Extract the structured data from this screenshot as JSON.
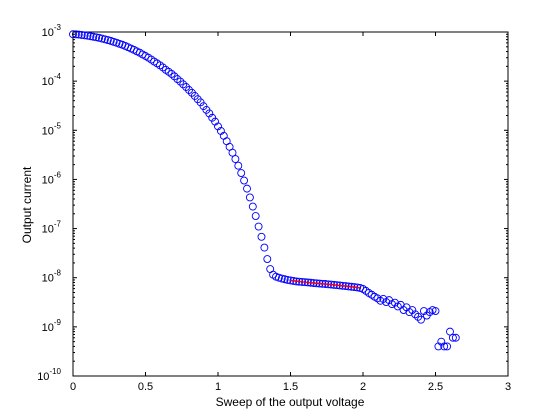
{
  "chart_data": {
    "type": "scatter",
    "title": "",
    "xlabel": "Sweep of the output voltage",
    "ylabel": "Output current",
    "xlim": [
      0,
      3
    ],
    "ylim": [
      1e-10,
      0.001
    ],
    "yscale": "log",
    "grid": false,
    "xticks": [
      {
        "value": 0,
        "label": "0"
      },
      {
        "value": 0.5,
        "label": "0.5"
      },
      {
        "value": 1,
        "label": "1"
      },
      {
        "value": 1.5,
        "label": "1.5"
      },
      {
        "value": 2,
        "label": "2"
      },
      {
        "value": 2.5,
        "label": "2.5"
      },
      {
        "value": 3,
        "label": "3"
      }
    ],
    "yticks": [
      {
        "value": 1e-10,
        "base": "10",
        "exp": "-10"
      },
      {
        "value": 1e-09,
        "base": "10",
        "exp": "-9"
      },
      {
        "value": 1e-08,
        "base": "10",
        "exp": "-8"
      },
      {
        "value": 1e-07,
        "base": "10",
        "exp": "-7"
      },
      {
        "value": 1e-06,
        "base": "10",
        "exp": "-6"
      },
      {
        "value": 1e-05,
        "base": "10",
        "exp": "-5"
      },
      {
        "value": 0.0001,
        "base": "10",
        "exp": "-4"
      },
      {
        "value": 0.001,
        "base": "10",
        "exp": "-3"
      }
    ],
    "series": [
      {
        "marker": "circle-open",
        "color": "#0000ff",
        "points": [
          [
            0.0,
            0.0009
          ],
          [
            0.02,
            0.000895
          ],
          [
            0.04,
            0.000885
          ],
          [
            0.06,
            0.00087
          ],
          [
            0.08,
            0.000855
          ],
          [
            0.1,
            0.00084
          ],
          [
            0.12,
            0.00082
          ],
          [
            0.14,
            0.0008
          ],
          [
            0.16,
            0.00078
          ],
          [
            0.18,
            0.00076
          ],
          [
            0.2,
            0.000735
          ],
          [
            0.22,
            0.00071
          ],
          [
            0.24,
            0.000685
          ],
          [
            0.26,
            0.00066
          ],
          [
            0.28,
            0.00063
          ],
          [
            0.3,
            0.000605
          ],
          [
            0.32,
            0.000575
          ],
          [
            0.34,
            0.00055
          ],
          [
            0.36,
            0.00052
          ],
          [
            0.38,
            0.00049
          ],
          [
            0.4,
            0.00046
          ],
          [
            0.42,
            0.000435
          ],
          [
            0.44,
            0.000405
          ],
          [
            0.46,
            0.00038
          ],
          [
            0.48,
            0.00035
          ],
          [
            0.5,
            0.000325
          ],
          [
            0.52,
            0.0003
          ],
          [
            0.54,
            0.000275
          ],
          [
            0.56,
            0.00025
          ],
          [
            0.58,
            0.00023
          ],
          [
            0.6,
            0.00021
          ],
          [
            0.62,
            0.00019
          ],
          [
            0.64,
            0.00017
          ],
          [
            0.66,
            0.000155
          ],
          [
            0.68,
            0.00014
          ],
          [
            0.7,
            0.000125
          ],
          [
            0.72,
            0.00011
          ],
          [
            0.74,
            9.8e-05
          ],
          [
            0.76,
            8.6e-05
          ],
          [
            0.78,
            7.6e-05
          ],
          [
            0.8,
            6.6e-05
          ],
          [
            0.82,
            5.8e-05
          ],
          [
            0.84,
            5e-05
          ],
          [
            0.86,
            4.3e-05
          ],
          [
            0.88,
            3.7e-05
          ],
          [
            0.9,
            3.1e-05
          ],
          [
            0.92,
            2.6e-05
          ],
          [
            0.94,
            2.2e-05
          ],
          [
            0.96,
            1.8e-05
          ],
          [
            0.98,
            1.5e-05
          ],
          [
            1.0,
            1.2e-05
          ],
          [
            1.02,
            9.7e-06
          ],
          [
            1.04,
            7.7e-06
          ],
          [
            1.06,
            6e-06
          ],
          [
            1.08,
            4.6e-06
          ],
          [
            1.1,
            3.5e-06
          ],
          [
            1.12,
            2.6e-06
          ],
          [
            1.14,
            1.9e-06
          ],
          [
            1.16,
            1.35e-06
          ],
          [
            1.18,
            9.5e-07
          ],
          [
            1.2,
            6.5e-07
          ],
          [
            1.22,
            4.3e-07
          ],
          [
            1.24,
            2.8e-07
          ],
          [
            1.26,
            1.8e-07
          ],
          [
            1.28,
            1.1e-07
          ],
          [
            1.3,
            6.8e-08
          ],
          [
            1.32,
            4.1e-08
          ],
          [
            1.34,
            2.4e-08
          ],
          [
            1.36,
            1.5e-08
          ],
          [
            1.38,
            1.15e-08
          ],
          [
            1.4,
            1.05e-08
          ],
          [
            1.42,
            1e-08
          ],
          [
            1.44,
            9.6e-09
          ],
          [
            1.46,
            9.3e-09
          ],
          [
            1.48,
            9e-09
          ],
          [
            1.5,
            8.8e-09
          ],
          [
            1.52,
            8.6e-09
          ],
          [
            1.54,
            8.4e-09
          ],
          [
            1.56,
            8.3e-09
          ],
          [
            1.58,
            8.2e-09
          ],
          [
            1.6,
            8.1e-09
          ],
          [
            1.62,
            8e-09
          ],
          [
            1.64,
            7.9e-09
          ],
          [
            1.66,
            7.8e-09
          ],
          [
            1.68,
            7.7e-09
          ],
          [
            1.7,
            7.6e-09
          ],
          [
            1.72,
            7.5e-09
          ],
          [
            1.74,
            7.45e-09
          ],
          [
            1.76,
            7.35e-09
          ],
          [
            1.78,
            7.25e-09
          ],
          [
            1.8,
            7.15e-09
          ],
          [
            1.82,
            7.05e-09
          ],
          [
            1.84,
            6.95e-09
          ],
          [
            1.86,
            6.85e-09
          ],
          [
            1.88,
            6.75e-09
          ],
          [
            1.9,
            6.65e-09
          ],
          [
            1.92,
            6.55e-09
          ],
          [
            1.94,
            6.45e-09
          ],
          [
            1.96,
            6.35e-09
          ],
          [
            1.98,
            6.2e-09
          ],
          [
            2.0,
            5.9e-09
          ],
          [
            2.02,
            5.4e-09
          ],
          [
            2.04,
            4.9e-09
          ],
          [
            2.06,
            4.5e-09
          ],
          [
            2.08,
            4.1e-09
          ],
          [
            2.1,
            3.8e-09
          ],
          [
            2.12,
            3.4e-09
          ],
          [
            2.14,
            3.7e-09
          ],
          [
            2.16,
            3.2e-09
          ],
          [
            2.18,
            3.5e-09
          ],
          [
            2.2,
            2.9e-09
          ],
          [
            2.22,
            3.1e-09
          ],
          [
            2.24,
            2.6e-09
          ],
          [
            2.26,
            2.8e-09
          ],
          [
            2.28,
            2.2e-09
          ],
          [
            2.3,
            2.5e-09
          ],
          [
            2.32,
            2e-09
          ],
          [
            2.34,
            2.2e-09
          ],
          [
            2.36,
            1.8e-09
          ],
          [
            2.38,
            1.6e-09
          ],
          [
            2.4,
            1.4e-09
          ],
          [
            2.42,
            2.1e-09
          ],
          [
            2.44,
            1.7e-09
          ],
          [
            2.46,
            2e-09
          ],
          [
            2.48,
            2.2e-09
          ],
          [
            2.5,
            2.1e-09
          ],
          [
            2.52,
            4e-10
          ],
          [
            2.54,
            5e-10
          ],
          [
            2.56,
            4e-10
          ],
          [
            2.58,
            4e-10
          ],
          [
            2.6,
            8e-10
          ],
          [
            2.62,
            6e-10
          ],
          [
            2.64,
            6e-10
          ]
        ]
      },
      {
        "marker": "line",
        "color": "#ff0000",
        "points": [
          [
            1.5,
            8.8e-09
          ],
          [
            1.6,
            8.1e-09
          ],
          [
            1.7,
            7.6e-09
          ],
          [
            1.8,
            7.15e-09
          ],
          [
            1.9,
            6.65e-09
          ],
          [
            1.98,
            6.2e-09
          ]
        ]
      }
    ]
  }
}
